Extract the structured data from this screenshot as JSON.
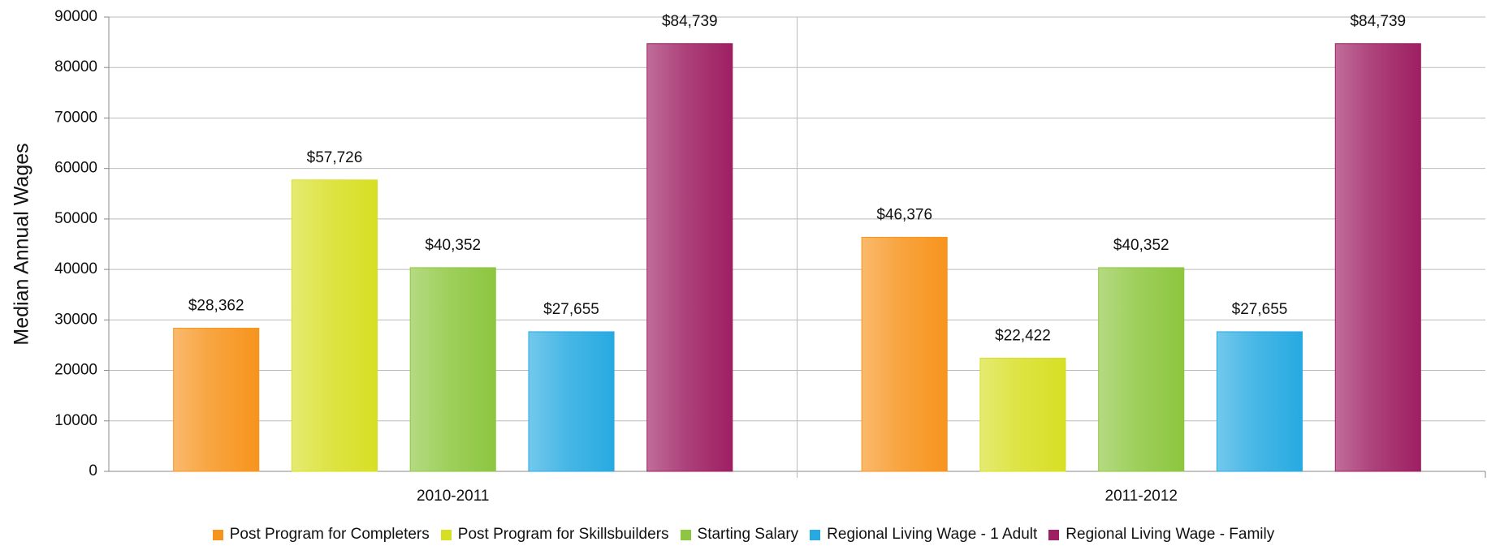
{
  "chart_data": {
    "type": "bar",
    "y_label": "Median Annual Wages",
    "categories": [
      "2010-2011",
      "2011-2012"
    ],
    "series": [
      {
        "name": "Post Program for Completers",
        "color": "#f7941d",
        "values": [
          28362,
          46376
        ],
        "value_labels": [
          "$28,362",
          "$46,376"
        ]
      },
      {
        "name": "Post Program for Skillsbuilders",
        "color": "#d7df23",
        "values": [
          57726,
          22422
        ],
        "value_labels": [
          "$57,726",
          "$22,422"
        ]
      },
      {
        "name": "Starting Salary",
        "color": "#8dc63f",
        "values": [
          40352,
          40352
        ],
        "value_labels": [
          "$40,352",
          "$40,352"
        ]
      },
      {
        "name": "Regional Living Wage - 1 Adult",
        "color": "#27aae1",
        "values": [
          27655,
          27655
        ],
        "value_labels": [
          "$27,655",
          "$27,655"
        ]
      },
      {
        "name": "Regional Living Wage - Family",
        "color": "#9e1f63",
        "values": [
          84739,
          84739
        ],
        "value_labels": [
          "$84,739",
          "$84,739"
        ]
      }
    ],
    "ylim": [
      0,
      90000
    ],
    "yticks": [
      0,
      10000,
      20000,
      30000,
      40000,
      50000,
      60000,
      70000,
      80000,
      90000
    ],
    "grid": true,
    "legend": "bottom"
  }
}
